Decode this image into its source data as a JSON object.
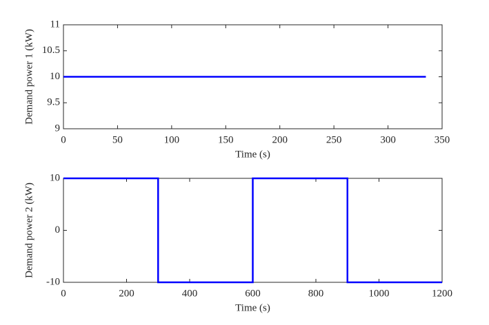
{
  "chart_data": [
    {
      "type": "line",
      "xlabel": "Time (s)",
      "ylabel": "Demand power 1 (kW)",
      "x": [
        0,
        335
      ],
      "values": [
        10,
        10
      ],
      "color": "#0000ff",
      "xlim": [
        0,
        350
      ],
      "xticks": [
        0,
        50,
        100,
        150,
        200,
        250,
        300,
        350
      ],
      "ylim": [
        9,
        11
      ],
      "yticks": [
        9,
        9.5,
        10,
        10.5,
        11
      ]
    },
    {
      "type": "line",
      "xlabel": "Time (s)",
      "ylabel": "Demand power 2 (kW)",
      "x": [
        0,
        300,
        300,
        600,
        600,
        900,
        900,
        1200
      ],
      "values": [
        10,
        10,
        -10,
        -10,
        10,
        10,
        -10,
        -10
      ],
      "color": "#0000ff",
      "xlim": [
        0,
        1200
      ],
      "xticks": [
        0,
        200,
        400,
        600,
        800,
        1000,
        1200
      ],
      "ylim": [
        -10,
        10
      ],
      "yticks": [
        -10,
        0,
        10
      ]
    }
  ]
}
